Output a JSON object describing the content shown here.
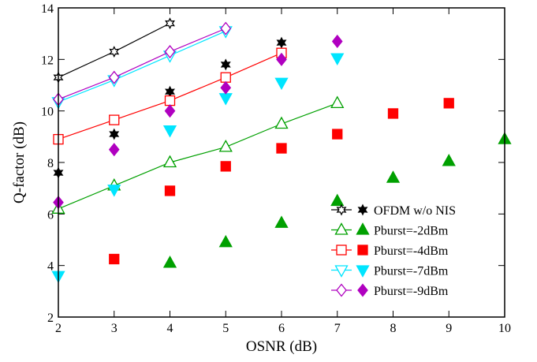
{
  "chart_data": {
    "type": "scatter",
    "title": "",
    "xlabel": "OSNR (dB)",
    "ylabel": "Q-factor (dB)",
    "xlim": [
      2,
      10
    ],
    "ylim": [
      2,
      14
    ],
    "xticks": [
      2,
      3,
      4,
      5,
      6,
      7,
      8,
      9,
      10
    ],
    "yticks": [
      2,
      4,
      6,
      8,
      10,
      12,
      14
    ],
    "grid": false,
    "legend_position": "bottom-right",
    "series": [
      {
        "name": "OFDM w/o NIS",
        "color": "#000000",
        "open_marker": "star",
        "filled_marker": "star6",
        "open": {
          "x": [
            2,
            3,
            4
          ],
          "y": [
            11.3,
            12.3,
            13.4
          ]
        },
        "filled": {
          "x": [
            2,
            3,
            4,
            5,
            6
          ],
          "y": [
            7.6,
            9.1,
            10.75,
            11.8,
            12.65
          ]
        }
      },
      {
        "name": "Pburst=-2dBm",
        "color": "#00a000",
        "open_marker": "triangle-up",
        "filled_marker": "triangle-up",
        "open": {
          "x": [
            2,
            3,
            4,
            5,
            6,
            7
          ],
          "y": [
            6.2,
            7.1,
            8.0,
            8.6,
            9.5,
            10.3
          ]
        },
        "filled": {
          "x": [
            4,
            5,
            6,
            7,
            8,
            9,
            10
          ],
          "y": [
            4.1,
            4.9,
            5.65,
            6.5,
            7.4,
            8.05,
            8.9
          ]
        }
      },
      {
        "name": "Pburst=-4dBm",
        "color": "#ff0000",
        "open_marker": "square",
        "filled_marker": "square",
        "open": {
          "x": [
            2,
            3,
            4,
            5,
            6
          ],
          "y": [
            8.9,
            9.65,
            10.4,
            11.3,
            12.25
          ]
        },
        "filled": {
          "x": [
            3,
            4,
            5,
            6,
            7,
            8,
            9
          ],
          "y": [
            4.25,
            6.9,
            7.85,
            8.55,
            9.1,
            9.9,
            10.3
          ]
        }
      },
      {
        "name": "Pburst=-7dBm",
        "color": "#00e5ff",
        "open_marker": "triangle-down",
        "filled_marker": "triangle-down",
        "open": {
          "x": [
            2,
            3,
            4,
            5
          ],
          "y": [
            10.35,
            11.2,
            12.15,
            13.1
          ]
        },
        "filled": {
          "x": [
            2,
            3,
            4,
            5,
            6,
            7
          ],
          "y": [
            3.6,
            6.95,
            9.25,
            10.5,
            11.1,
            12.05
          ]
        }
      },
      {
        "name": "Pburst=-9dBm",
        "color": "#b000c0",
        "open_marker": "diamond",
        "filled_marker": "diamond",
        "open": {
          "x": [
            2,
            3,
            4,
            5
          ],
          "y": [
            10.45,
            11.3,
            12.3,
            13.2
          ]
        },
        "filled": {
          "x": [
            2,
            3,
            4,
            5,
            6,
            7
          ],
          "y": [
            6.45,
            8.5,
            10.0,
            10.9,
            12.0,
            12.7
          ]
        }
      }
    ]
  }
}
